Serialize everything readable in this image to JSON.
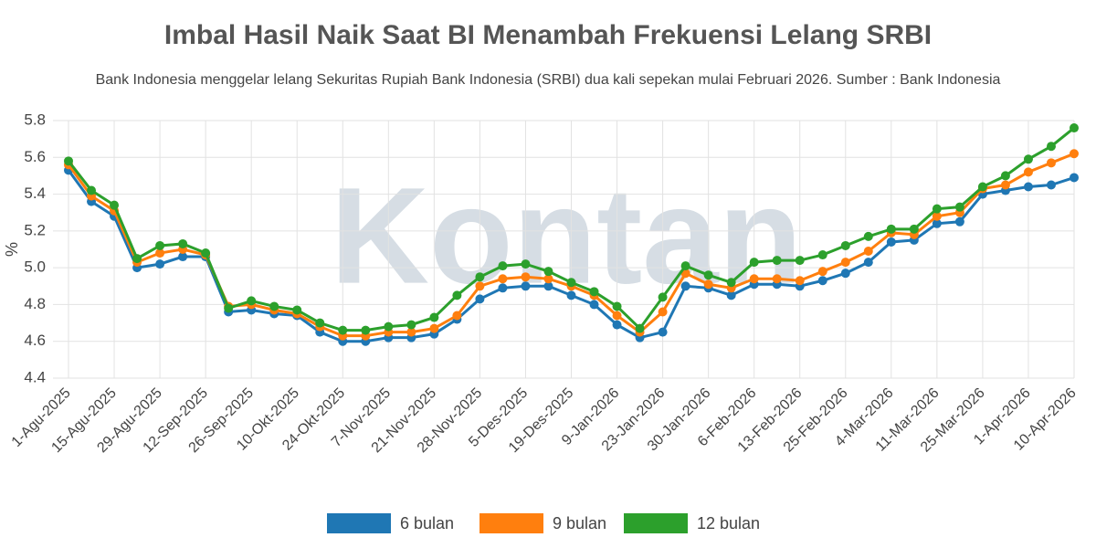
{
  "chart_data": {
    "type": "line",
    "title": "Imbal Hasil Naik Saat BI Menambah Frekuensi Lelang SRBI",
    "subtitle": "Bank Indonesia menggelar lelang Sekuritas Rupiah Bank Indonesia (SRBI) dua kali sepekan mulai Februari 2026. Sumber : Bank Indonesia",
    "watermark": "Kontan",
    "y_label": "%",
    "categories": [
      "1-Agu-2025",
      null,
      "15-Agu-2025",
      null,
      "29-Agu-2025",
      null,
      "12-Sep-2025",
      null,
      "26-Sep-2025",
      null,
      "10-Okt-2025",
      null,
      "24-Okt-2025",
      null,
      "7-Nov-2025",
      null,
      "21-Nov-2025",
      null,
      "28-Nov-2025",
      null,
      "5-Des-2025",
      null,
      "19-Des-2025",
      null,
      "9-Jan-2026",
      null,
      "23-Jan-2026",
      null,
      "30-Jan-2026",
      null,
      "6-Feb-2026",
      null,
      "13-Feb-2026",
      null,
      "25-Feb-2026",
      null,
      "4-Mar-2026",
      null,
      "11-Mar-2026",
      null,
      "25-Mar-2026",
      null,
      "1-Apr-2026",
      null,
      "10-Apr-2026"
    ],
    "series": [
      {
        "name": "6 bulan",
        "color": "#1f77b4",
        "values": [
          5.53,
          5.36,
          5.28,
          5.0,
          5.02,
          5.06,
          5.06,
          4.76,
          4.77,
          4.75,
          4.74,
          4.65,
          4.6,
          4.6,
          4.62,
          4.62,
          4.64,
          4.72,
          4.83,
          4.89,
          4.9,
          4.9,
          4.85,
          4.8,
          4.69,
          4.62,
          4.65,
          4.9,
          4.89,
          4.85,
          4.91,
          4.91,
          4.9,
          4.93,
          4.97,
          5.03,
          5.14,
          5.15,
          5.24,
          5.25,
          5.4,
          5.42,
          5.44,
          5.45,
          5.49
        ]
      },
      {
        "name": "9 bulan",
        "color": "#ff7f0e",
        "values": [
          5.56,
          5.39,
          5.31,
          5.03,
          5.08,
          5.1,
          5.07,
          4.79,
          4.8,
          4.77,
          4.75,
          4.68,
          4.63,
          4.63,
          4.65,
          4.65,
          4.67,
          4.74,
          4.9,
          4.94,
          4.95,
          4.94,
          4.9,
          4.85,
          4.74,
          4.65,
          4.76,
          4.97,
          4.91,
          4.89,
          4.94,
          4.94,
          4.93,
          4.98,
          5.03,
          5.09,
          5.19,
          5.18,
          5.28,
          5.3,
          5.43,
          5.45,
          5.52,
          5.57,
          5.62
        ]
      },
      {
        "name": "12 bulan",
        "color": "#2ca02c",
        "values": [
          5.58,
          5.42,
          5.34,
          5.05,
          5.12,
          5.13,
          5.08,
          4.78,
          4.82,
          4.79,
          4.77,
          4.7,
          4.66,
          4.66,
          4.68,
          4.69,
          4.73,
          4.85,
          4.95,
          5.01,
          5.02,
          4.98,
          4.92,
          4.87,
          4.79,
          4.67,
          4.84,
          5.01,
          4.96,
          4.92,
          5.03,
          5.04,
          5.04,
          5.07,
          5.12,
          5.17,
          5.21,
          5.21,
          5.32,
          5.33,
          5.44,
          5.5,
          5.59,
          5.66,
          5.76
        ]
      }
    ],
    "ylim": [
      4.4,
      5.8
    ],
    "yticks": [
      4.4,
      4.6,
      4.8,
      {
        "value": 5,
        "label": "5.0"
      },
      5.2,
      5.4,
      5.6,
      5.8
    ],
    "grid": true
  }
}
